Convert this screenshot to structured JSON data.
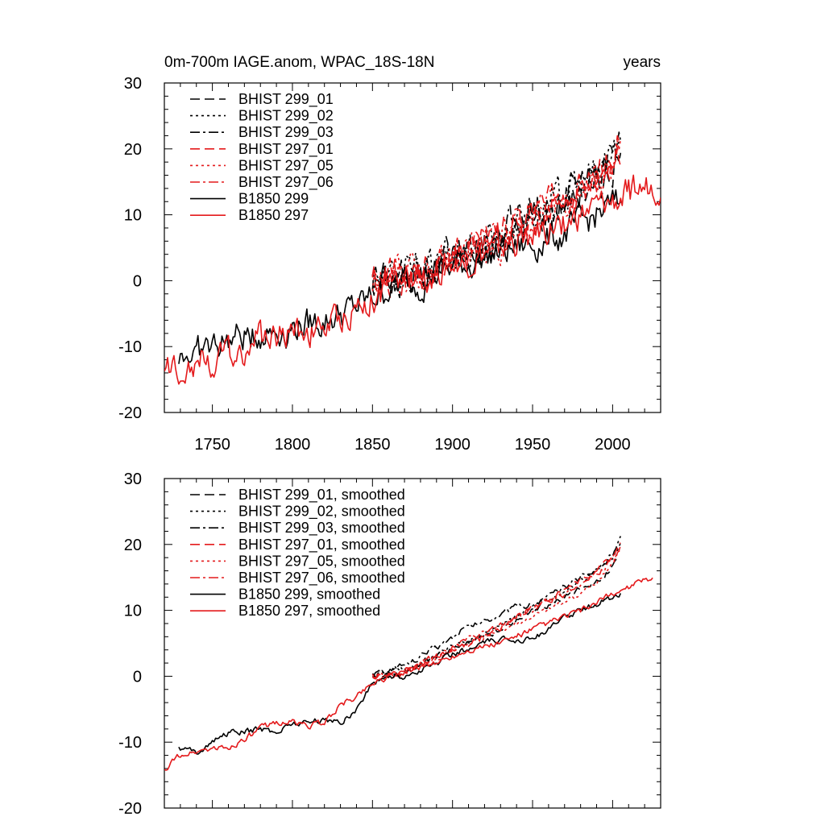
{
  "colors": {
    "black": "#000000",
    "red": "#e41a1c",
    "background": "#ffffff"
  },
  "header": {
    "left": "0m-700m IAGE.anom, WPAC_18S-18N",
    "right": "years"
  },
  "chart_data": [
    {
      "type": "line",
      "panel": "top",
      "xlim": [
        1720,
        2030
      ],
      "ylim": [
        -20,
        30
      ],
      "xticks": [
        1750,
        1800,
        1850,
        1900,
        1950,
        2000
      ],
      "yticks": [
        -20,
        -10,
        0,
        10,
        20,
        30
      ],
      "show_x_tick_labels": true,
      "legend": {
        "placement": "top-left"
      },
      "series": [
        {
          "name": "BHIST 299_01",
          "color": "#000000",
          "dash": "dash",
          "noise": 2.2,
          "x": [
            1850,
            1870,
            1890,
            1910,
            1930,
            1950,
            1970,
            1990,
            2000,
            2005
          ],
          "y": [
            0,
            1,
            2,
            4,
            6,
            9,
            12,
            15,
            17,
            18
          ]
        },
        {
          "name": "BHIST 299_02",
          "color": "#000000",
          "dash": "dot",
          "noise": 2.2,
          "x": [
            1850,
            1870,
            1890,
            1910,
            1930,
            1950,
            1970,
            1990,
            2000,
            2005
          ],
          "y": [
            0,
            1,
            2.5,
            4.5,
            7,
            10,
            13,
            16,
            19,
            21
          ]
        },
        {
          "name": "BHIST 299_03",
          "color": "#000000",
          "dash": "dashdot",
          "noise": 2.2,
          "x": [
            1850,
            1870,
            1890,
            1910,
            1930,
            1950,
            1970,
            1990,
            2000,
            2005
          ],
          "y": [
            0,
            1,
            2.5,
            5,
            8,
            11,
            13.5,
            16,
            19,
            21
          ]
        },
        {
          "name": "BHIST 297_01",
          "color": "#e41a1c",
          "dash": "dash",
          "noise": 2.2,
          "x": [
            1850,
            1870,
            1890,
            1910,
            1930,
            1950,
            1970,
            1990,
            2000,
            2005
          ],
          "y": [
            0,
            0.5,
            2,
            4,
            6.5,
            9.5,
            12.5,
            15,
            18,
            20
          ]
        },
        {
          "name": "BHIST 297_05",
          "color": "#e41a1c",
          "dash": "dot",
          "noise": 2.2,
          "x": [
            1850,
            1870,
            1890,
            1910,
            1930,
            1950,
            1970,
            1990,
            2000,
            2005
          ],
          "y": [
            0,
            0.5,
            2,
            4,
            6,
            9,
            12,
            15,
            18,
            20
          ]
        },
        {
          "name": "BHIST 297_06",
          "color": "#e41a1c",
          "dash": "dashdot",
          "noise": 2.2,
          "x": [
            1850,
            1870,
            1890,
            1910,
            1930,
            1950,
            1970,
            1990,
            2000,
            2005
          ],
          "y": [
            0,
            0.5,
            2,
            4.5,
            7,
            10,
            13,
            15.5,
            18.5,
            20
          ]
        },
        {
          "name": "B1850 299",
          "color": "#000000",
          "dash": "solid",
          "noise": 2.0,
          "x": [
            1729,
            1740,
            1760,
            1780,
            1800,
            1820,
            1840,
            1860,
            1880,
            1900,
            1920,
            1940,
            1950,
            1970,
            1990,
            2005
          ],
          "y": [
            -11,
            -11,
            -9,
            -8,
            -7,
            -6,
            -4,
            -1,
            0,
            2,
            3.5,
            5,
            5.5,
            7,
            10,
            12
          ]
        },
        {
          "name": "B1850 297",
          "color": "#e41a1c",
          "dash": "solid",
          "noise": 2.0,
          "x": [
            1720,
            1730,
            1740,
            1760,
            1780,
            1800,
            1820,
            1840,
            1860,
            1880,
            1900,
            1920,
            1940,
            1960,
            1980,
            2000,
            2020,
            2030
          ],
          "y": [
            -14,
            -13,
            -12,
            -11.5,
            -9,
            -7.5,
            -7,
            -4,
            -1,
            0.5,
            2.5,
            4,
            6,
            8,
            10,
            12,
            14,
            15
          ]
        }
      ]
    },
    {
      "type": "line",
      "panel": "bottom",
      "xlim": [
        1720,
        2030
      ],
      "ylim": [
        -20,
        30
      ],
      "xticks": [
        1750,
        1800,
        1850,
        1900,
        1950,
        2000
      ],
      "yticks": [
        -20,
        -10,
        0,
        10,
        20,
        30
      ],
      "show_x_tick_labels": false,
      "legend": {
        "placement": "top-left"
      },
      "series": [
        {
          "name": "BHIST 299_01, smoothed",
          "color": "#000000",
          "dash": "dash",
          "noise": 0.4,
          "x": [
            1850,
            1860,
            1870,
            1880,
            1890,
            1900,
            1910,
            1920,
            1930,
            1940,
            1950,
            1960,
            1970,
            1980,
            1990,
            2000,
            2005
          ],
          "y": [
            0,
            0,
            0.5,
            1.5,
            3,
            4,
            5,
            6,
            7,
            8.5,
            10,
            11,
            12,
            13.5,
            14.5,
            16.5,
            18
          ]
        },
        {
          "name": "BHIST 299_02, smoothed",
          "color": "#000000",
          "dash": "dot",
          "noise": 0.4,
          "x": [
            1850,
            1860,
            1870,
            1880,
            1890,
            1900,
            1910,
            1920,
            1930,
            1940,
            1950,
            1960,
            1970,
            1980,
            1990,
            2000,
            2005
          ],
          "y": [
            0,
            0.5,
            1,
            2,
            3,
            4.5,
            5.5,
            6.5,
            8,
            9.5,
            10.5,
            12,
            13,
            14.5,
            16,
            18,
            20
          ]
        },
        {
          "name": "BHIST 299_03, smoothed",
          "color": "#000000",
          "dash": "dashdot",
          "noise": 0.4,
          "x": [
            1850,
            1860,
            1870,
            1880,
            1890,
            1900,
            1910,
            1920,
            1930,
            1940,
            1950,
            1960,
            1970,
            1980,
            1990,
            2000,
            2005
          ],
          "y": [
            0,
            1,
            1.5,
            3,
            4.5,
            6,
            7.5,
            8.5,
            9.5,
            10.5,
            11,
            12,
            13.5,
            15,
            16,
            18.5,
            21
          ]
        },
        {
          "name": "BHIST 297_01, smoothed",
          "color": "#e41a1c",
          "dash": "dash",
          "noise": 0.4,
          "x": [
            1850,
            1860,
            1870,
            1880,
            1890,
            1900,
            1910,
            1920,
            1930,
            1940,
            1950,
            1960,
            1970,
            1980,
            1990,
            2000,
            2005
          ],
          "y": [
            0,
            0,
            0.5,
            1.5,
            3,
            4,
            5,
            6,
            7.5,
            9,
            10.5,
            11.5,
            13,
            14.5,
            16,
            18,
            20
          ]
        },
        {
          "name": "BHIST 297_05, smoothed",
          "color": "#e41a1c",
          "dash": "dot",
          "noise": 0.4,
          "x": [
            1850,
            1860,
            1870,
            1880,
            1890,
            1900,
            1910,
            1920,
            1930,
            1940,
            1950,
            1960,
            1970,
            1980,
            1990,
            2000,
            2005
          ],
          "y": [
            0,
            0,
            0.5,
            1.5,
            2.5,
            4,
            5,
            6,
            7,
            8,
            9,
            10,
            11.5,
            12.5,
            14,
            17,
            19.5
          ]
        },
        {
          "name": "BHIST 297_06, smoothed",
          "color": "#e41a1c",
          "dash": "dashdot",
          "noise": 0.4,
          "x": [
            1850,
            1860,
            1870,
            1880,
            1890,
            1900,
            1910,
            1920,
            1930,
            1940,
            1950,
            1960,
            1970,
            1980,
            1990,
            2000,
            2005
          ],
          "y": [
            0,
            0,
            0.5,
            2,
            3,
            4.5,
            5.5,
            6.5,
            7.5,
            9,
            10,
            11.5,
            12.5,
            14,
            15.5,
            17.5,
            19.5
          ]
        },
        {
          "name": "B1850 299, smoothed",
          "color": "#000000",
          "dash": "solid",
          "noise": 0.4,
          "x": [
            1729,
            1740,
            1750,
            1760,
            1770,
            1780,
            1790,
            1800,
            1810,
            1820,
            1830,
            1840,
            1850,
            1860,
            1870,
            1880,
            1890,
            1900,
            1910,
            1920,
            1930,
            1940,
            1950,
            1960,
            1970,
            1980,
            1990,
            2000,
            2005
          ],
          "y": [
            -11,
            -11.5,
            -10,
            -8.5,
            -8.5,
            -8,
            -8.5,
            -7,
            -7,
            -6.5,
            -7,
            -5,
            -1,
            0,
            0,
            1,
            2,
            3.5,
            4,
            5,
            5.5,
            5.5,
            6,
            7,
            9,
            10,
            11,
            12,
            12.5
          ]
        },
        {
          "name": "B1850 297, smoothed",
          "color": "#e41a1c",
          "dash": "solid",
          "noise": 0.4,
          "x": [
            1720,
            1730,
            1740,
            1750,
            1760,
            1770,
            1780,
            1790,
            1800,
            1810,
            1820,
            1830,
            1840,
            1850,
            1860,
            1870,
            1880,
            1890,
            1900,
            1910,
            1920,
            1930,
            1940,
            1950,
            1960,
            1970,
            1980,
            1990,
            2000,
            2010,
            2020,
            2025
          ],
          "y": [
            -14,
            -12,
            -11.5,
            -11,
            -11,
            -9.5,
            -8,
            -7,
            -7,
            -7.5,
            -7,
            -4.5,
            -3,
            -1,
            0,
            1,
            1.5,
            2,
            3,
            4,
            4.5,
            5,
            6,
            7,
            8,
            9,
            10,
            11,
            12.5,
            13.5,
            14.5,
            15
          ]
        }
      ]
    }
  ]
}
